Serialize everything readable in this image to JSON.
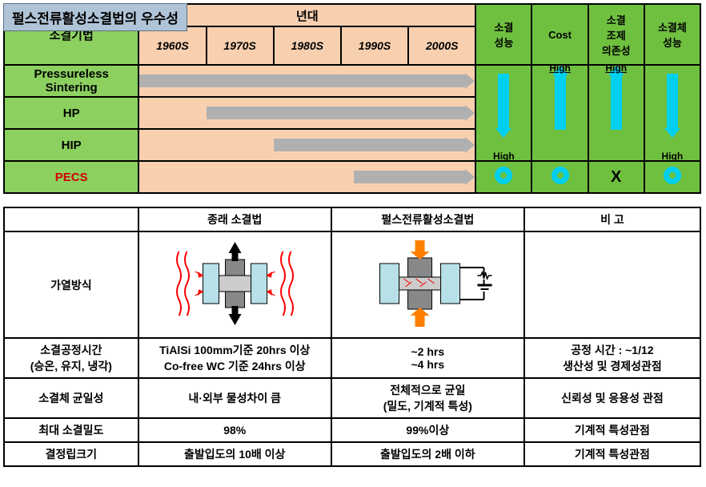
{
  "title": "펄스전류활성소결법의 우수성",
  "topChart": {
    "decadeHeader": "년대",
    "rowLabelHeader": "소결기법",
    "decades": [
      "1960S",
      "1970S",
      "1980S",
      "1990S",
      "2000S"
    ],
    "evalHeaders": [
      "소결\n성능",
      "Cost",
      "소결\n조제\n의존성",
      "소결체\n성능"
    ],
    "rows": [
      {
        "label": "Pressureless\nSintering",
        "barStartDecade": 0,
        "barSpanDecades": 5
      },
      {
        "label": "HP",
        "barStartDecade": 1,
        "barSpanDecades": 4
      },
      {
        "label": "HIP",
        "barStartDecade": 2,
        "barSpanDecades": 3
      },
      {
        "label": "PECS",
        "barStartDecade": 3.2,
        "barSpanDecades": 1.8,
        "isPecs": true
      }
    ],
    "evalArrows": [
      {
        "dir": "down",
        "highPos": "bottom",
        "highText": "High"
      },
      {
        "dir": "up",
        "highPos": "top",
        "highText": "High"
      },
      {
        "dir": "up",
        "highPos": "top",
        "highText": "High"
      },
      {
        "dir": "down",
        "highPos": "bottom",
        "highText": "High"
      }
    ],
    "pecsEval": [
      "target",
      "target",
      "X",
      "target"
    ],
    "colors": {
      "green": "#8cd060",
      "greenDark": "#70c040",
      "peach": "#f8d0b0",
      "titleBg": "#b0c4d8",
      "bar": "#b0b0b0",
      "cyan": "#00d0f0",
      "pecsText": "#d00000"
    }
  },
  "bottomTable": {
    "headers": [
      "",
      "종래 소결법",
      "펄스전류활성소결법",
      "비 고"
    ],
    "rows": [
      {
        "key": "heating",
        "label": "가열방식",
        "c1": "__DIAGRAM_CONVENTIONAL__",
        "c2": "__DIAGRAM_PECS__",
        "c3": ""
      },
      {
        "key": "time",
        "label": "소결공정시간\n(승온, 유지, 냉각)",
        "c1": "TiAlSi 100mm기준 20hrs 이상\nCo-free WC 기준 24hrs 이상",
        "c2": "~2 hrs\n~4 hrs",
        "c3": "공정 시간 : ~1/12\n생산성 및 경제성관점"
      },
      {
        "key": "uniformity",
        "label": "소결체 균일성",
        "c1": "내·외부 물성차이 큼",
        "c2": "전체적으로 균일\n(밀도, 기계적 특성)",
        "c3": "신뢰성 및 응용성 관점"
      },
      {
        "key": "density",
        "label": "최대 소결밀도",
        "c1": "98%",
        "c2": "99%이상",
        "c3": "기계적 특성관점"
      },
      {
        "key": "grain",
        "label": "결정립크기",
        "c1": "출발입도의 10배 이상",
        "c2": "출발입도의 2배 이하",
        "c3": "기계적 특성관점"
      }
    ],
    "diagramColors": {
      "dieBody": "#b8e0e8",
      "punch": "#888",
      "sample": "#ccc",
      "heatWave": "#ff0000",
      "pecsArrow": "#ff8000",
      "convArrow": "#000"
    }
  }
}
